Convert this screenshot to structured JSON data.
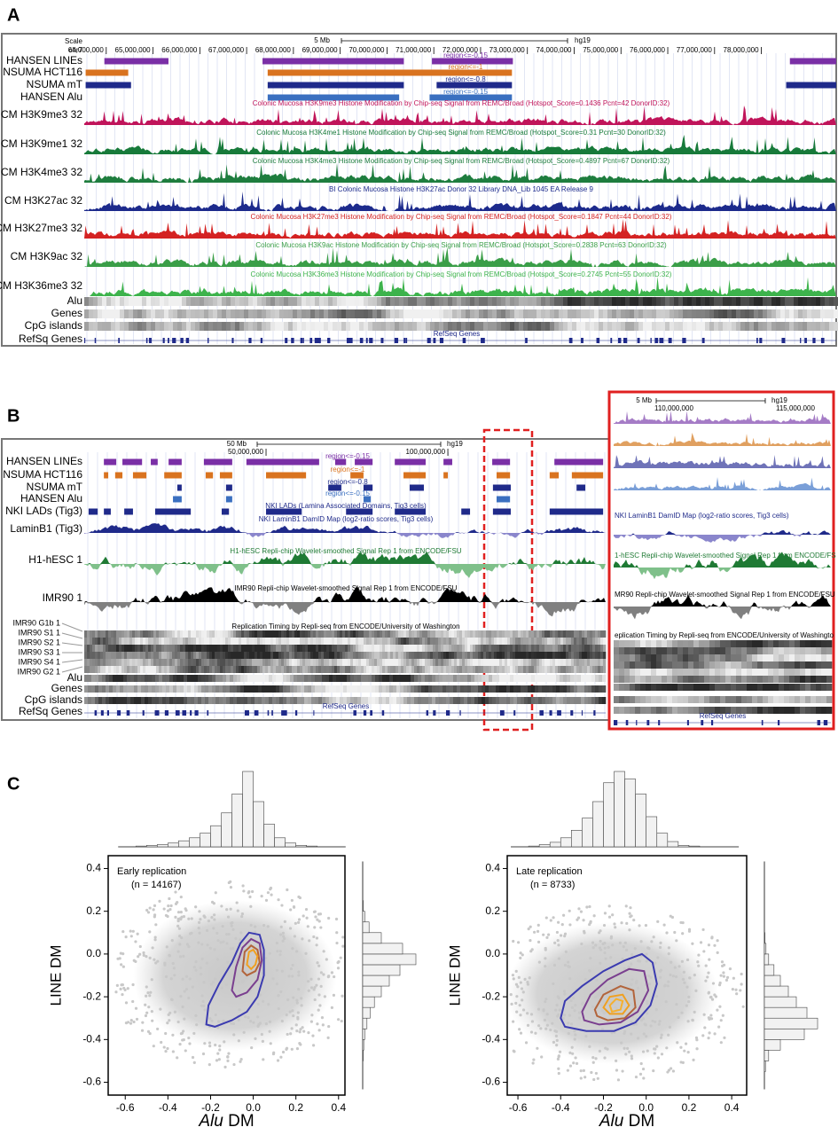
{
  "panels": {
    "A": {
      "label": "A",
      "scale_label": "Scale",
      "chrom": "chr7",
      "scale_bar": "5 Mb",
      "assembly": "hg19",
      "xlim": [
        63530000,
        79600000
      ],
      "coords": [
        {
          "value": 64000000,
          "label": "64,000,000"
        },
        {
          "value": 65000000,
          "label": "65,000,000"
        },
        {
          "value": 66000000,
          "label": "66,000,000"
        },
        {
          "value": 67000000,
          "label": "67,000,000"
        },
        {
          "value": 68000000,
          "label": "68,000,000"
        },
        {
          "value": 69000000,
          "label": "69,000,000"
        },
        {
          "value": 70000000,
          "label": "70,000,000"
        },
        {
          "value": 71000000,
          "label": "71,000,000"
        },
        {
          "value": 72000000,
          "label": "72,000,000"
        },
        {
          "value": 73000000,
          "label": "73,000,000"
        },
        {
          "value": 74000000,
          "label": "74,000,000"
        },
        {
          "value": 75000000,
          "label": "75,000,000"
        },
        {
          "value": 76000000,
          "label": "76,000,000"
        },
        {
          "value": 77000000,
          "label": "77,000,000"
        },
        {
          "value": 78000000,
          "label": "78,000,000"
        }
      ],
      "region_tracks": [
        {
          "name": "HANSEN LINEs",
          "color": "#7a2fa6",
          "annotation": "region<=-0.15",
          "regions": [
            [
              63960000,
              65330000
            ],
            [
              67340000,
              70360000
            ],
            [
              70960000,
              72690000
            ],
            [
              78610000,
              79600000
            ]
          ]
        },
        {
          "name": "NSUMA HCT116",
          "color": "#d9731f",
          "annotation": "region<=-1",
          "regions": [
            [
              63560000,
              64470000
            ],
            [
              67450000,
              72670000
            ]
          ]
        },
        {
          "name": "NSUMA mT",
          "color": "#1f2a8a",
          "annotation": "region<=-0.8",
          "regions": [
            [
              63560000,
              64530000
            ],
            [
              67450000,
              70360000
            ],
            [
              71060000,
              72670000
            ],
            [
              78530000,
              79600000
            ]
          ]
        },
        {
          "name": "HANSEN Alu",
          "color": "#3a6fc0",
          "annotation": "region<=-0.15",
          "regions": [
            [
              67450000,
              70260000
            ],
            [
              70910000,
              72670000
            ]
          ]
        }
      ],
      "signal_tracks": [
        {
          "name": "CM H3K9me3 32",
          "color": "#c0145a",
          "title": "Colonic Mucosa H3K9me3 Histone Modification by Chip-seq Signal from REMC/Broad (Hotspot_Score=0.1436 Pcnt=42 DonorID:32)"
        },
        {
          "name": "CM H3K9me1 32",
          "color": "#177a3a",
          "title": "Colonic Mucosa H3K4me1 Histone Modification by Chip-seq Signal from REMC/Broad (Hotspot_Score=0.31 Pcnt=30 DonorID:32)"
        },
        {
          "name": "CM H3K4me3 32",
          "color": "#1e7d3e",
          "title": "Colonic Mucosa H3K4me3 Histone Modification by Chip-seq Signal from REMC/Broad (Hotspot_Score=0.4897 Pcnt=67 DonorID:32)"
        },
        {
          "name": "CM H3K27ac 32",
          "color": "#1c2a8c",
          "title": "BI Colonic Mucosa Histone H3K27ac Donor 32 Library DNA_Lib 1045 EA Release 9"
        },
        {
          "name": "CM H3K27me3 32",
          "color": "#d42222",
          "title": "Colonic Mucosa H3K27me3 Histone Modification by Chip-seq Signal from REMC/Broad (Hotspot_Score=0.1847 Pcnt=44 DonorID:32)"
        },
        {
          "name": "CM H3K9ac 32",
          "color": "#3a9e48",
          "title": "Colonic Mucosa H3K9ac Histone Modification by Chip-seq Signal from REMC/Broad (Hotspot_Score=0.2838 Pcnt=63 DonorID:32)"
        },
        {
          "name": "CM H3K36me3 32",
          "color": "#3db34c",
          "title": "Colonic Mucosa H3K36me3 Histone Modification by Chip-seq Signal from REMC/Broad (Hotspot_Score=0.2745 Pcnt=55 DonorID:32)"
        }
      ],
      "density_tracks": [
        "Alu",
        "Genes",
        "CpG islands"
      ],
      "gene_track": {
        "name": "RefSq Genes",
        "title": "RefSeq Genes"
      }
    },
    "B": {
      "label": "B",
      "scale_bar": "50 Mb",
      "assembly": "hg19",
      "xlim": [
        0,
        143400000
      ],
      "coords": [
        {
          "value": 50000000,
          "label": "50,000,000"
        },
        {
          "value": 100000000,
          "label": "100,000,000"
        }
      ],
      "region_tracks": [
        {
          "name": "HANSEN LINEs",
          "color": "#7a2fa6",
          "annotation": "region<=-0.15",
          "regions": [
            [
              5400000,
              8800000
            ],
            [
              10500000,
              15900000
            ],
            [
              18300000,
              20200000
            ],
            [
              23200000,
              26800000
            ],
            [
              32900000,
              40700000
            ],
            [
              44600000,
              64600000
            ],
            [
              69000000,
              72000000
            ],
            [
              74400000,
              79300000
            ],
            [
              85400000,
              93900000
            ],
            [
              98800000,
              101200000
            ],
            [
              112200000,
              117100000
            ],
            [
              129300000,
              142700000
            ]
          ]
        },
        {
          "name": "NSUMA HCT116",
          "color": "#d9731f",
          "annotation": "region<=-1",
          "regions": [
            [
              5400000,
              6600000
            ],
            [
              8500000,
              10500000
            ],
            [
              13400000,
              17100000
            ],
            [
              22000000,
              26800000
            ],
            [
              33400000,
              35400000
            ],
            [
              37300000,
              40700000
            ],
            [
              50000000,
              61000000
            ],
            [
              73200000,
              76800000
            ],
            [
              87800000,
              93900000
            ],
            [
              98800000,
              100000000
            ],
            [
              113400000,
              117100000
            ],
            [
              128000000,
              130500000
            ],
            [
              134100000,
              142700000
            ]
          ]
        },
        {
          "name": "NSUMA mT",
          "color": "#1f2a8a",
          "annotation": "region<=-0.8",
          "regions": [
            [
              25600000,
              26800000
            ],
            [
              39000000,
              40700000
            ],
            [
              67100000,
              70700000
            ],
            [
              76800000,
              79300000
            ],
            [
              89500000,
              93400000
            ],
            [
              112400000,
              117300000
            ],
            [
              135400000,
              137800000
            ]
          ]
        },
        {
          "name": "HANSEN Alu",
          "color": "#3a6fc0",
          "annotation": "region<=-0.15",
          "regions": [
            [
              24400000,
              26800000
            ],
            [
              39000000,
              40700000
            ],
            [
              76800000,
              78800000
            ],
            [
              113400000,
              117100000
            ]
          ]
        },
        {
          "name": "NKI LADs (Tig3)",
          "color": "#1f2a8a",
          "annotation": "NKI LADs (Lamina Associated Domains, Tig3 cells)",
          "regions": [
            [
              1200000,
              3700000
            ],
            [
              5400000,
              7300000
            ],
            [
              11000000,
              13400000
            ],
            [
              19500000,
              29300000
            ],
            [
              37800000,
              39800000
            ],
            [
              50000000,
              59800000
            ],
            [
              72000000,
              79300000
            ],
            [
              85400000,
              93900000
            ],
            [
              103700000,
              106100000
            ],
            [
              112400000,
              117300000
            ],
            [
              128000000,
              142700000
            ]
          ]
        }
      ],
      "signal_tracks": [
        {
          "name": "LaminB1 (Tig3)",
          "color": "#1f2a8a",
          "color2": "#8a86cc",
          "title": "NKI LaminB1 DamID Map (log2-ratio scores, Tig3 cells)"
        },
        {
          "name": "H1-hESC 1",
          "color": "#1f7a34",
          "color2": "#7fc08a",
          "title": "H1-hESC Repli-chip Wavelet-smoothed Signal Rep 1 from ENCODE/FSU"
        },
        {
          "name": "IMR90 1",
          "color": "#000000",
          "color2": "#808080",
          "title": "IMR90 Repli-chip Wavelet-smoothed Signal Rep 1 from ENCODE/FSU"
        }
      ],
      "repliseq": {
        "title": "Replication Timing by Repli-seq from ENCODE/University of Washington",
        "rows": [
          "IMR90 G1b 1",
          "IMR90 S1 1",
          "IMR90 S2 1",
          "IMR90 S3 1",
          "IMR90 S4 1",
          "IMR90 G2 1"
        ]
      },
      "density_tracks": [
        "Alu",
        "Genes",
        "CpG islands"
      ],
      "gene_track": {
        "name": "RefSq Genes",
        "title": "RefSeq Genes"
      },
      "inset": {
        "scale_bar": "5 Mb",
        "assembly": "hg19",
        "coords": [
          "110,000,000",
          "115,000,000"
        ],
        "titles": [
          "NKI LaminB1 DamID Map (log2-ratio scores, Tig3 cells)",
          "1-hESC Repli-chip Wavelet-smoothed Signal Rep 1 from ENCODE/FS",
          "MR90 Repli-chip Wavelet-smoothed Signal Rep 1 from ENCODE/FSU",
          "eplication Timing by Repli-seq from ENCODE/University of Washingto",
          "RefSeq Genes"
        ]
      }
    },
    "C": {
      "label": "C"
    }
  },
  "chart_data": [
    {
      "type": "scatter",
      "title": "Early replication",
      "subtitle": "(n = 14167)",
      "x_label": [
        "Alu",
        "DM"
      ],
      "y_label": "LINE DM",
      "xlim": [
        -0.68,
        0.43
      ],
      "ylim": [
        -0.66,
        0.46
      ],
      "xticks": [
        -0.6,
        -0.4,
        -0.2,
        {
          "value": 0,
          "label": "0.0"
        },
        0.2,
        0.4
      ],
      "yticks": [
        -0.6,
        -0.4,
        -0.2,
        {
          "value": 0,
          "label": "0.0"
        },
        0.2,
        0.4
      ],
      "point_color": "#c8c8c8",
      "contours": [
        {
          "color": "#3b3bb0",
          "x": [
            -0.22,
            -0.21,
            -0.16,
            -0.1,
            -0.06,
            -0.02,
            0.03,
            0.05,
            0.05,
            0.02,
            -0.03,
            -0.1,
            -0.18
          ],
          "y": [
            -0.33,
            -0.24,
            -0.14,
            -0.04,
            0.05,
            0.1,
            0.09,
            0.02,
            -0.1,
            -0.2,
            -0.27,
            -0.31,
            -0.34
          ]
        },
        {
          "color": "#7a3f8f",
          "x": [
            -0.1,
            -0.08,
            -0.05,
            -0.01,
            0.03,
            0.04,
            0.02,
            -0.03,
            -0.08
          ],
          "y": [
            -0.17,
            -0.06,
            0.03,
            0.07,
            0.05,
            -0.03,
            -0.12,
            -0.18,
            -0.2
          ]
        },
        {
          "color": "#b2643b",
          "x": [
            -0.05,
            -0.04,
            -0.01,
            0.02,
            0.03,
            0.01,
            -0.03
          ],
          "y": [
            -0.08,
            0.01,
            0.04,
            0.02,
            -0.04,
            -0.08,
            -0.1
          ]
        },
        {
          "color": "#f0a020",
          "x": [
            -0.03,
            -0.02,
            0.0,
            0.02,
            0.01,
            -0.01
          ],
          "y": [
            -0.05,
            0.01,
            0.02,
            -0.01,
            -0.05,
            -0.07
          ]
        }
      ],
      "hist_color": "#444444",
      "x_hist": {
        "bins": [
          -0.6,
          -0.55,
          -0.5,
          -0.45,
          -0.4,
          -0.35,
          -0.3,
          -0.25,
          -0.2,
          -0.15,
          -0.1,
          -0.05,
          0,
          0.05,
          0.1,
          0.15,
          0.2,
          0.25,
          0.3,
          0.35,
          0.4
        ],
        "counts": [
          0,
          1,
          2,
          3,
          5,
          8,
          12,
          18,
          28,
          45,
          70,
          100,
          60,
          30,
          12,
          5,
          2,
          1,
          0,
          0
        ]
      },
      "y_hist": {
        "bins": [
          -0.6,
          -0.55,
          -0.5,
          -0.45,
          -0.4,
          -0.35,
          -0.3,
          -0.25,
          -0.2,
          -0.15,
          -0.1,
          -0.05,
          0,
          0.05,
          0.1,
          0.15,
          0.2,
          0.25,
          0.3,
          0.35,
          0.4
        ],
        "counts": [
          0,
          0,
          1,
          2,
          4,
          8,
          14,
          22,
          35,
          50,
          70,
          100,
          75,
          35,
          12,
          4,
          1,
          0,
          0,
          0
        ]
      }
    },
    {
      "type": "scatter",
      "title": "Late replication",
      "subtitle": "(n = 8733)",
      "x_label": [
        "Alu",
        "DM"
      ],
      "y_label": "LINE DM",
      "xlim": [
        -0.65,
        0.47
      ],
      "ylim": [
        -0.66,
        0.46
      ],
      "xticks": [
        -0.6,
        -0.4,
        -0.2,
        {
          "value": 0,
          "label": "0.0"
        },
        0.2,
        0.4
      ],
      "yticks": [
        -0.6,
        -0.4,
        -0.2,
        {
          "value": 0,
          "label": "0.0"
        },
        0.2,
        0.4
      ],
      "point_color": "#c8c8c8",
      "contours": [
        {
          "color": "#3b3bb0",
          "x": [
            -0.4,
            -0.38,
            -0.3,
            -0.2,
            -0.1,
            -0.02,
            0.03,
            0.05,
            0.02,
            -0.05,
            -0.15,
            -0.28,
            -0.38
          ],
          "y": [
            -0.3,
            -0.22,
            -0.15,
            -0.08,
            -0.03,
            0.0,
            -0.04,
            -0.14,
            -0.24,
            -0.32,
            -0.36,
            -0.36,
            -0.34
          ]
        },
        {
          "color": "#7a3f8f",
          "x": [
            -0.3,
            -0.26,
            -0.18,
            -0.08,
            -0.01,
            0.01,
            -0.04,
            -0.12,
            -0.22,
            -0.29
          ],
          "y": [
            -0.27,
            -0.19,
            -0.12,
            -0.07,
            -0.08,
            -0.17,
            -0.27,
            -0.32,
            -0.33,
            -0.31
          ]
        },
        {
          "color": "#b2643b",
          "x": [
            -0.24,
            -0.2,
            -0.12,
            -0.06,
            -0.05,
            -0.1,
            -0.18,
            -0.23
          ],
          "y": [
            -0.26,
            -0.19,
            -0.15,
            -0.17,
            -0.25,
            -0.3,
            -0.31,
            -0.29
          ]
        },
        {
          "color": "#f0a020",
          "x": [
            -0.2,
            -0.17,
            -0.11,
            -0.08,
            -0.11,
            -0.17
          ],
          "y": [
            -0.25,
            -0.2,
            -0.19,
            -0.24,
            -0.28,
            -0.28
          ]
        },
        {
          "color": "#f5b030",
          "x": [
            -0.17,
            -0.14,
            -0.11,
            -0.12,
            -0.16
          ],
          "y": [
            -0.24,
            -0.21,
            -0.22,
            -0.26,
            -0.27
          ]
        }
      ],
      "hist_color": "#444444",
      "x_hist": {
        "bins": [
          -0.6,
          -0.55,
          -0.5,
          -0.45,
          -0.4,
          -0.35,
          -0.3,
          -0.25,
          -0.2,
          -0.15,
          -0.1,
          -0.05,
          0,
          0.05,
          0.1,
          0.15,
          0.2,
          0.25,
          0.3,
          0.35,
          0.4
        ],
        "counts": [
          0,
          1,
          3,
          6,
          12,
          22,
          38,
          60,
          85,
          100,
          90,
          70,
          40,
          18,
          7,
          2,
          1,
          0,
          0,
          0
        ]
      },
      "y_hist": {
        "bins": [
          -0.6,
          -0.55,
          -0.5,
          -0.45,
          -0.4,
          -0.35,
          -0.3,
          -0.25,
          -0.2,
          -0.15,
          -0.1,
          -0.05,
          0,
          0.05,
          0.1,
          0.15,
          0.2,
          0.25,
          0.3,
          0.35,
          0.4
        ],
        "counts": [
          0,
          2,
          8,
          30,
          75,
          100,
          80,
          60,
          45,
          30,
          18,
          8,
          3,
          1,
          0,
          0,
          0,
          0,
          0,
          0
        ]
      }
    }
  ]
}
